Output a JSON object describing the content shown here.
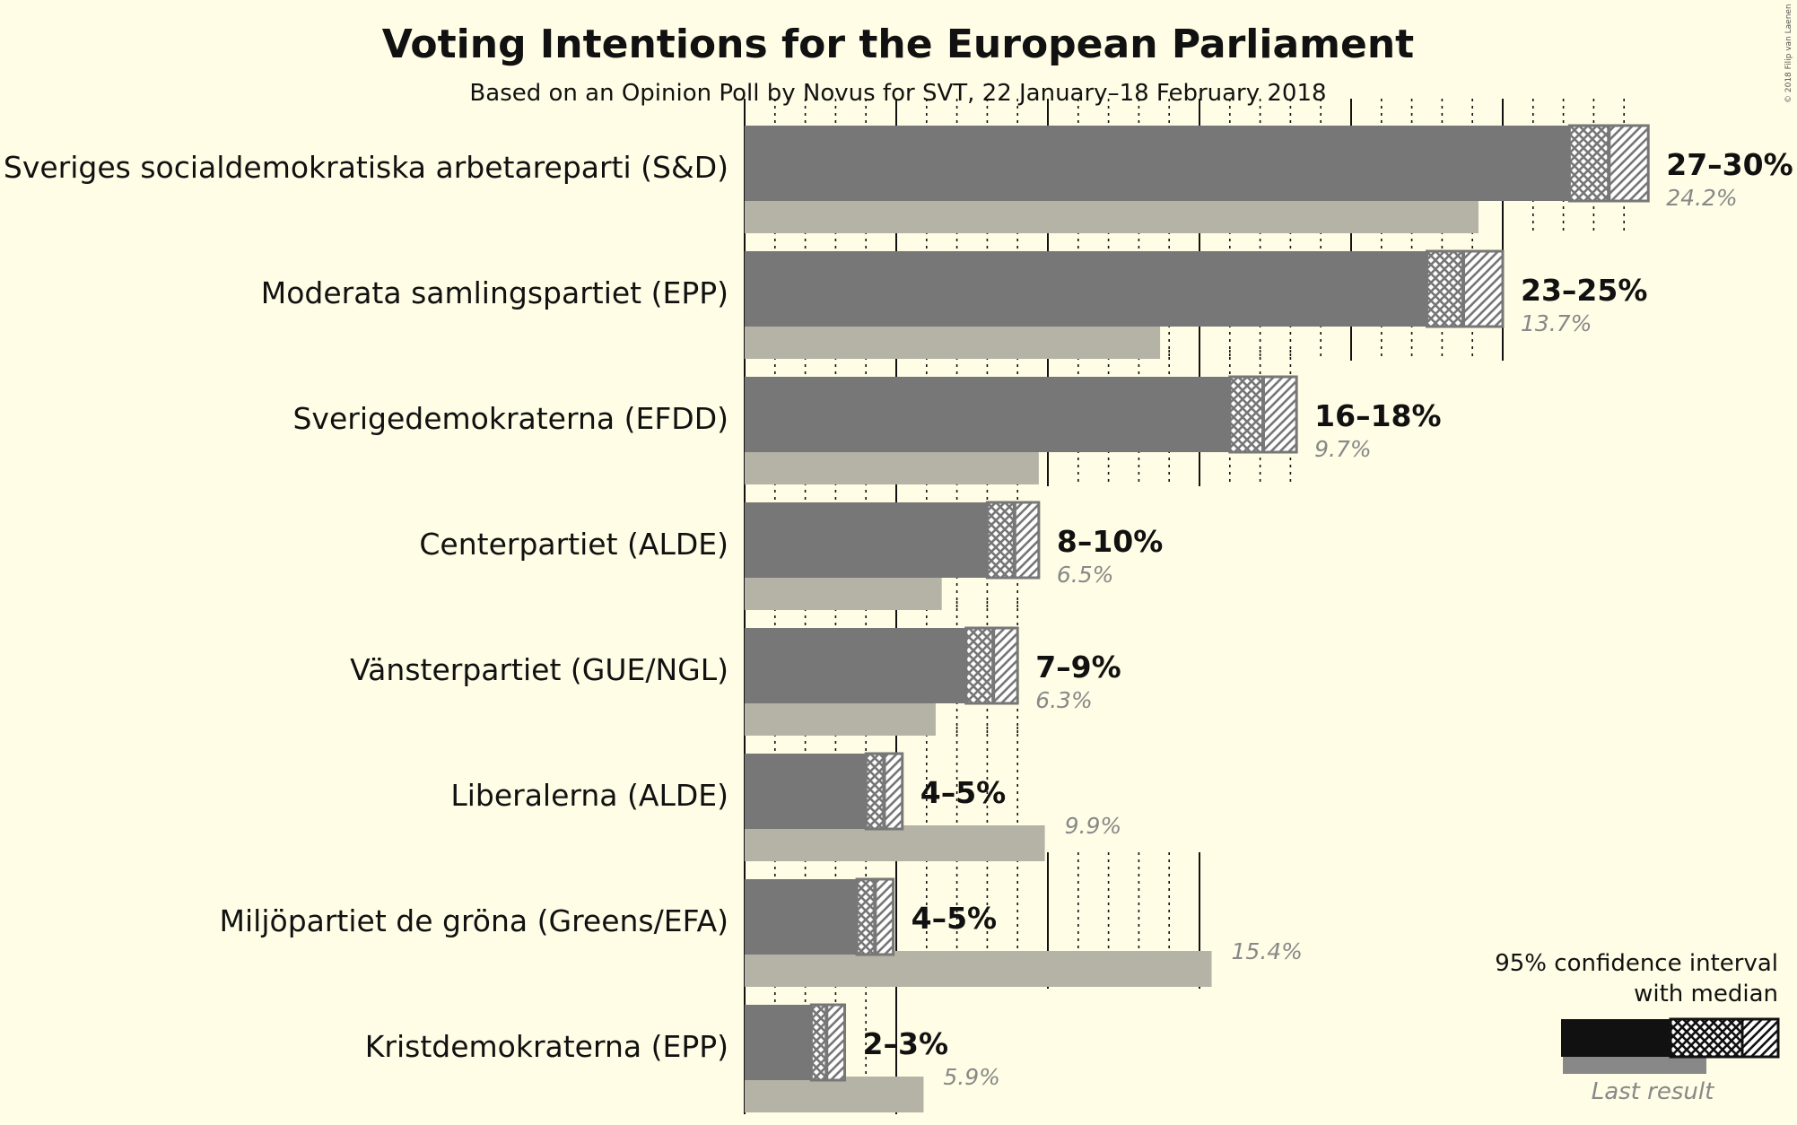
{
  "chart_data": {
    "type": "bar",
    "orientation": "horizontal",
    "title": "Voting Intentions for the European Parliament",
    "subtitle": "Based on an Opinion Poll by Novus for SVT, 22 January–18 February 2018",
    "copyright": "© 2018 Filip van Laenen",
    "categories": [
      "Sveriges socialdemokratiska arbetareparti (S&D)",
      "Moderata samlingspartiet (EPP)",
      "Sverigedemokraterna (EFDD)",
      "Centerpartiet (ALDE)",
      "Vänsterpartiet (GUE/NGL)",
      "Liberalerna (ALDE)",
      "Miljöpartiet de gröna (Greens/EFA)",
      "Kristdemokraterna (EPP)"
    ],
    "series": [
      {
        "name": "95% confidence interval with median",
        "ci_low": [
          27.2,
          22.5,
          16.0,
          8.0,
          7.3,
          4.0,
          3.7,
          2.2
        ],
        "median": [
          28.5,
          23.7,
          17.1,
          8.9,
          8.2,
          4.6,
          4.3,
          2.7
        ],
        "ci_high": [
          29.8,
          25.0,
          18.2,
          9.7,
          9.0,
          5.2,
          4.9,
          3.3
        ],
        "range_labels": [
          "27–30%",
          "23–25%",
          "16–18%",
          "8–10%",
          "7–9%",
          "4–5%",
          "4–5%",
          "2–3%"
        ]
      },
      {
        "name": "Last result",
        "values": [
          24.2,
          13.7,
          9.7,
          6.5,
          6.3,
          9.9,
          15.4,
          5.9
        ],
        "labels": [
          "24.2%",
          "13.7%",
          "9.7%",
          "6.5%",
          "6.3%",
          "9.9%",
          "15.4%",
          "5.9%"
        ]
      }
    ],
    "xlim": [
      0,
      30
    ],
    "grid": true,
    "legend": {
      "placement": "bottom-right",
      "ci_label_line1": "95% confidence interval",
      "ci_label_line2": "with median",
      "last_label": "Last result"
    },
    "colors": {
      "background": "#fffde5",
      "bar": "#777777",
      "last_result": "#b5b3a6",
      "legend_bar": "#111111",
      "text": "#111111",
      "last_text": "#888888"
    }
  }
}
